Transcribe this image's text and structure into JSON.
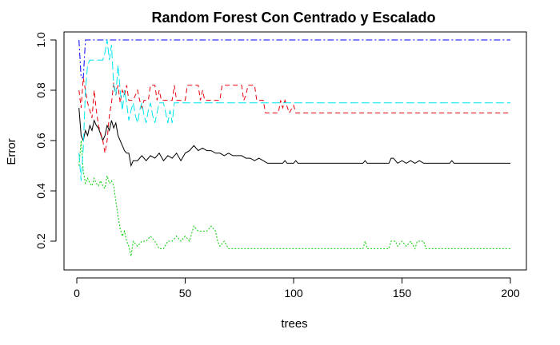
{
  "chart_data": {
    "type": "line",
    "title": "Random Forest Con Centrado y Escalado",
    "xlabel": "trees",
    "ylabel": "Error",
    "xlim": [
      0,
      200
    ],
    "ylim": [
      0.13,
      1.0
    ],
    "xticks": [
      0,
      50,
      100,
      150,
      200
    ],
    "yticks": [
      0.2,
      0.4,
      0.6,
      0.8,
      1.0
    ],
    "xtick_labels": [
      "0",
      "50",
      "100",
      "150",
      "200"
    ],
    "ytick_labels": [
      "0.2",
      "0.4",
      "0.6",
      "0.8",
      "1.0"
    ],
    "grid": false,
    "series": [
      {
        "color": "#000000",
        "dash": "",
        "points": [
          [
            1,
            0.73
          ],
          [
            2,
            0.62
          ],
          [
            3,
            0.6
          ],
          [
            4,
            0.64
          ],
          [
            5,
            0.62
          ],
          [
            6,
            0.66
          ],
          [
            7,
            0.64
          ],
          [
            8,
            0.68
          ],
          [
            9,
            0.66
          ],
          [
            10,
            0.65
          ],
          [
            12,
            0.6
          ],
          [
            13,
            0.62
          ],
          [
            14,
            0.66
          ],
          [
            15,
            0.64
          ],
          [
            16,
            0.68
          ],
          [
            17,
            0.65
          ],
          [
            18,
            0.67
          ],
          [
            19,
            0.62
          ],
          [
            20,
            0.6
          ],
          [
            21,
            0.58
          ],
          [
            22,
            0.56
          ],
          [
            23,
            0.55
          ],
          [
            24,
            0.55
          ],
          [
            25,
            0.5
          ],
          [
            26,
            0.52
          ],
          [
            28,
            0.52
          ],
          [
            30,
            0.54
          ],
          [
            32,
            0.52
          ],
          [
            34,
            0.54
          ],
          [
            36,
            0.53
          ],
          [
            38,
            0.55
          ],
          [
            40,
            0.52
          ],
          [
            42,
            0.54
          ],
          [
            44,
            0.53
          ],
          [
            46,
            0.55
          ],
          [
            48,
            0.52
          ],
          [
            50,
            0.55
          ],
          [
            52,
            0.56
          ],
          [
            54,
            0.58
          ],
          [
            56,
            0.56
          ],
          [
            58,
            0.57
          ],
          [
            60,
            0.56
          ],
          [
            62,
            0.56
          ],
          [
            64,
            0.55
          ],
          [
            66,
            0.55
          ],
          [
            68,
            0.54
          ],
          [
            70,
            0.55
          ],
          [
            72,
            0.54
          ],
          [
            76,
            0.54
          ],
          [
            78,
            0.53
          ],
          [
            80,
            0.53
          ],
          [
            82,
            0.52
          ],
          [
            84,
            0.53
          ],
          [
            86,
            0.52
          ],
          [
            88,
            0.51
          ],
          [
            95,
            0.51
          ],
          [
            96,
            0.52
          ],
          [
            97,
            0.51
          ],
          [
            100,
            0.51
          ],
          [
            101,
            0.52
          ],
          [
            102,
            0.51
          ],
          [
            132,
            0.51
          ],
          [
            133,
            0.52
          ],
          [
            134,
            0.51
          ],
          [
            144,
            0.51
          ],
          [
            145,
            0.53
          ],
          [
            146,
            0.53
          ],
          [
            147,
            0.52
          ],
          [
            148,
            0.51
          ],
          [
            150,
            0.52
          ],
          [
            152,
            0.51
          ],
          [
            154,
            0.52
          ],
          [
            156,
            0.51
          ],
          [
            158,
            0.52
          ],
          [
            160,
            0.51
          ],
          [
            172,
            0.51
          ],
          [
            173,
            0.52
          ],
          [
            174,
            0.51
          ],
          [
            200,
            0.51
          ]
        ]
      },
      {
        "color": "#e8000b",
        "dash": "6,4",
        "points": [
          [
            1,
            0.8
          ],
          [
            2,
            0.73
          ],
          [
            3,
            0.85
          ],
          [
            4,
            0.8
          ],
          [
            5,
            0.75
          ],
          [
            6,
            0.72
          ],
          [
            7,
            0.69
          ],
          [
            8,
            0.8
          ],
          [
            9,
            0.72
          ],
          [
            10,
            0.66
          ],
          [
            11,
            0.63
          ],
          [
            12,
            0.6
          ],
          [
            13,
            0.55
          ],
          [
            14,
            0.6
          ],
          [
            15,
            0.7
          ],
          [
            16,
            0.75
          ],
          [
            17,
            0.83
          ],
          [
            18,
            0.78
          ],
          [
            19,
            0.82
          ],
          [
            20,
            0.75
          ],
          [
            21,
            0.8
          ],
          [
            22,
            0.78
          ],
          [
            23,
            0.82
          ],
          [
            24,
            0.76
          ],
          [
            26,
            0.76
          ],
          [
            28,
            0.8
          ],
          [
            29,
            0.76
          ],
          [
            30,
            0.73
          ],
          [
            31,
            0.76
          ],
          [
            33,
            0.76
          ],
          [
            34,
            0.82
          ],
          [
            36,
            0.82
          ],
          [
            37,
            0.76
          ],
          [
            38,
            0.8
          ],
          [
            39,
            0.76
          ],
          [
            44,
            0.76
          ],
          [
            45,
            0.82
          ],
          [
            46,
            0.76
          ],
          [
            50,
            0.76
          ],
          [
            51,
            0.82
          ],
          [
            56,
            0.82
          ],
          [
            57,
            0.76
          ],
          [
            58,
            0.8
          ],
          [
            59,
            0.76
          ],
          [
            66,
            0.76
          ],
          [
            67,
            0.82
          ],
          [
            76,
            0.82
          ],
          [
            77,
            0.76
          ],
          [
            78,
            0.78
          ],
          [
            79,
            0.82
          ],
          [
            82,
            0.82
          ],
          [
            83,
            0.76
          ],
          [
            86,
            0.76
          ],
          [
            87,
            0.71
          ],
          [
            93,
            0.71
          ],
          [
            94,
            0.76
          ],
          [
            95,
            0.73
          ],
          [
            96,
            0.76
          ],
          [
            98,
            0.71
          ],
          [
            100,
            0.74
          ],
          [
            101,
            0.71
          ],
          [
            200,
            0.71
          ]
        ]
      },
      {
        "color": "#00cd00",
        "dash": "2,2",
        "points": [
          [
            1,
            0.5
          ],
          [
            2,
            0.6
          ],
          [
            3,
            0.48
          ],
          [
            4,
            0.43
          ],
          [
            5,
            0.45
          ],
          [
            6,
            0.43
          ],
          [
            7,
            0.42
          ],
          [
            8,
            0.45
          ],
          [
            9,
            0.43
          ],
          [
            10,
            0.42
          ],
          [
            11,
            0.44
          ],
          [
            12,
            0.42
          ],
          [
            13,
            0.41
          ],
          [
            14,
            0.46
          ],
          [
            15,
            0.43
          ],
          [
            16,
            0.44
          ],
          [
            17,
            0.42
          ],
          [
            18,
            0.36
          ],
          [
            19,
            0.3
          ],
          [
            20,
            0.25
          ],
          [
            21,
            0.22
          ],
          [
            22,
            0.24
          ],
          [
            23,
            0.2
          ],
          [
            24,
            0.18
          ],
          [
            25,
            0.14
          ],
          [
            26,
            0.2
          ],
          [
            28,
            0.18
          ],
          [
            30,
            0.2
          ],
          [
            32,
            0.2
          ],
          [
            34,
            0.22
          ],
          [
            36,
            0.2
          ],
          [
            38,
            0.17
          ],
          [
            40,
            0.17
          ],
          [
            42,
            0.2
          ],
          [
            44,
            0.2
          ],
          [
            46,
            0.22
          ],
          [
            48,
            0.2
          ],
          [
            50,
            0.22
          ],
          [
            52,
            0.2
          ],
          [
            54,
            0.26
          ],
          [
            56,
            0.24
          ],
          [
            60,
            0.24
          ],
          [
            62,
            0.26
          ],
          [
            64,
            0.24
          ],
          [
            65,
            0.2
          ],
          [
            66,
            0.18
          ],
          [
            68,
            0.2
          ],
          [
            70,
            0.17
          ],
          [
            132,
            0.17
          ],
          [
            133,
            0.2
          ],
          [
            134,
            0.17
          ],
          [
            144,
            0.17
          ],
          [
            145,
            0.2
          ],
          [
            147,
            0.2
          ],
          [
            148,
            0.18
          ],
          [
            150,
            0.2
          ],
          [
            152,
            0.18
          ],
          [
            154,
            0.2
          ],
          [
            156,
            0.17
          ],
          [
            157,
            0.2
          ],
          [
            160,
            0.2
          ],
          [
            161,
            0.17
          ],
          [
            200,
            0.17
          ]
        ]
      },
      {
        "color": "#0000ff",
        "dash": "8,3,2,3",
        "points": [
          [
            1,
            1.0
          ],
          [
            2,
            0.85
          ],
          [
            3,
            0.85
          ],
          [
            4,
            1.0
          ],
          [
            200,
            1.0
          ]
        ]
      },
      {
        "color": "#00e5ee",
        "dash": "10,4",
        "points": [
          [
            1,
            0.55
          ],
          [
            2,
            0.44
          ],
          [
            3,
            0.57
          ],
          [
            4,
            0.8
          ],
          [
            5,
            0.9
          ],
          [
            6,
            0.92
          ],
          [
            12,
            0.92
          ],
          [
            13,
            0.95
          ],
          [
            14,
            1.0
          ],
          [
            15,
            0.92
          ],
          [
            16,
            0.98
          ],
          [
            17,
            0.82
          ],
          [
            18,
            0.78
          ],
          [
            19,
            0.9
          ],
          [
            20,
            0.8
          ],
          [
            21,
            0.72
          ],
          [
            22,
            0.8
          ],
          [
            23,
            0.75
          ],
          [
            24,
            0.68
          ],
          [
            25,
            0.72
          ],
          [
            26,
            0.75
          ],
          [
            27,
            0.7
          ],
          [
            28,
            0.67
          ],
          [
            29,
            0.72
          ],
          [
            30,
            0.75
          ],
          [
            31,
            0.7
          ],
          [
            32,
            0.67
          ],
          [
            33,
            0.72
          ],
          [
            34,
            0.75
          ],
          [
            35,
            0.7
          ],
          [
            36,
            0.67
          ],
          [
            38,
            0.75
          ],
          [
            40,
            0.75
          ],
          [
            42,
            0.67
          ],
          [
            43,
            0.72
          ],
          [
            44,
            0.67
          ],
          [
            45,
            0.75
          ],
          [
            200,
            0.75
          ]
        ]
      }
    ]
  }
}
